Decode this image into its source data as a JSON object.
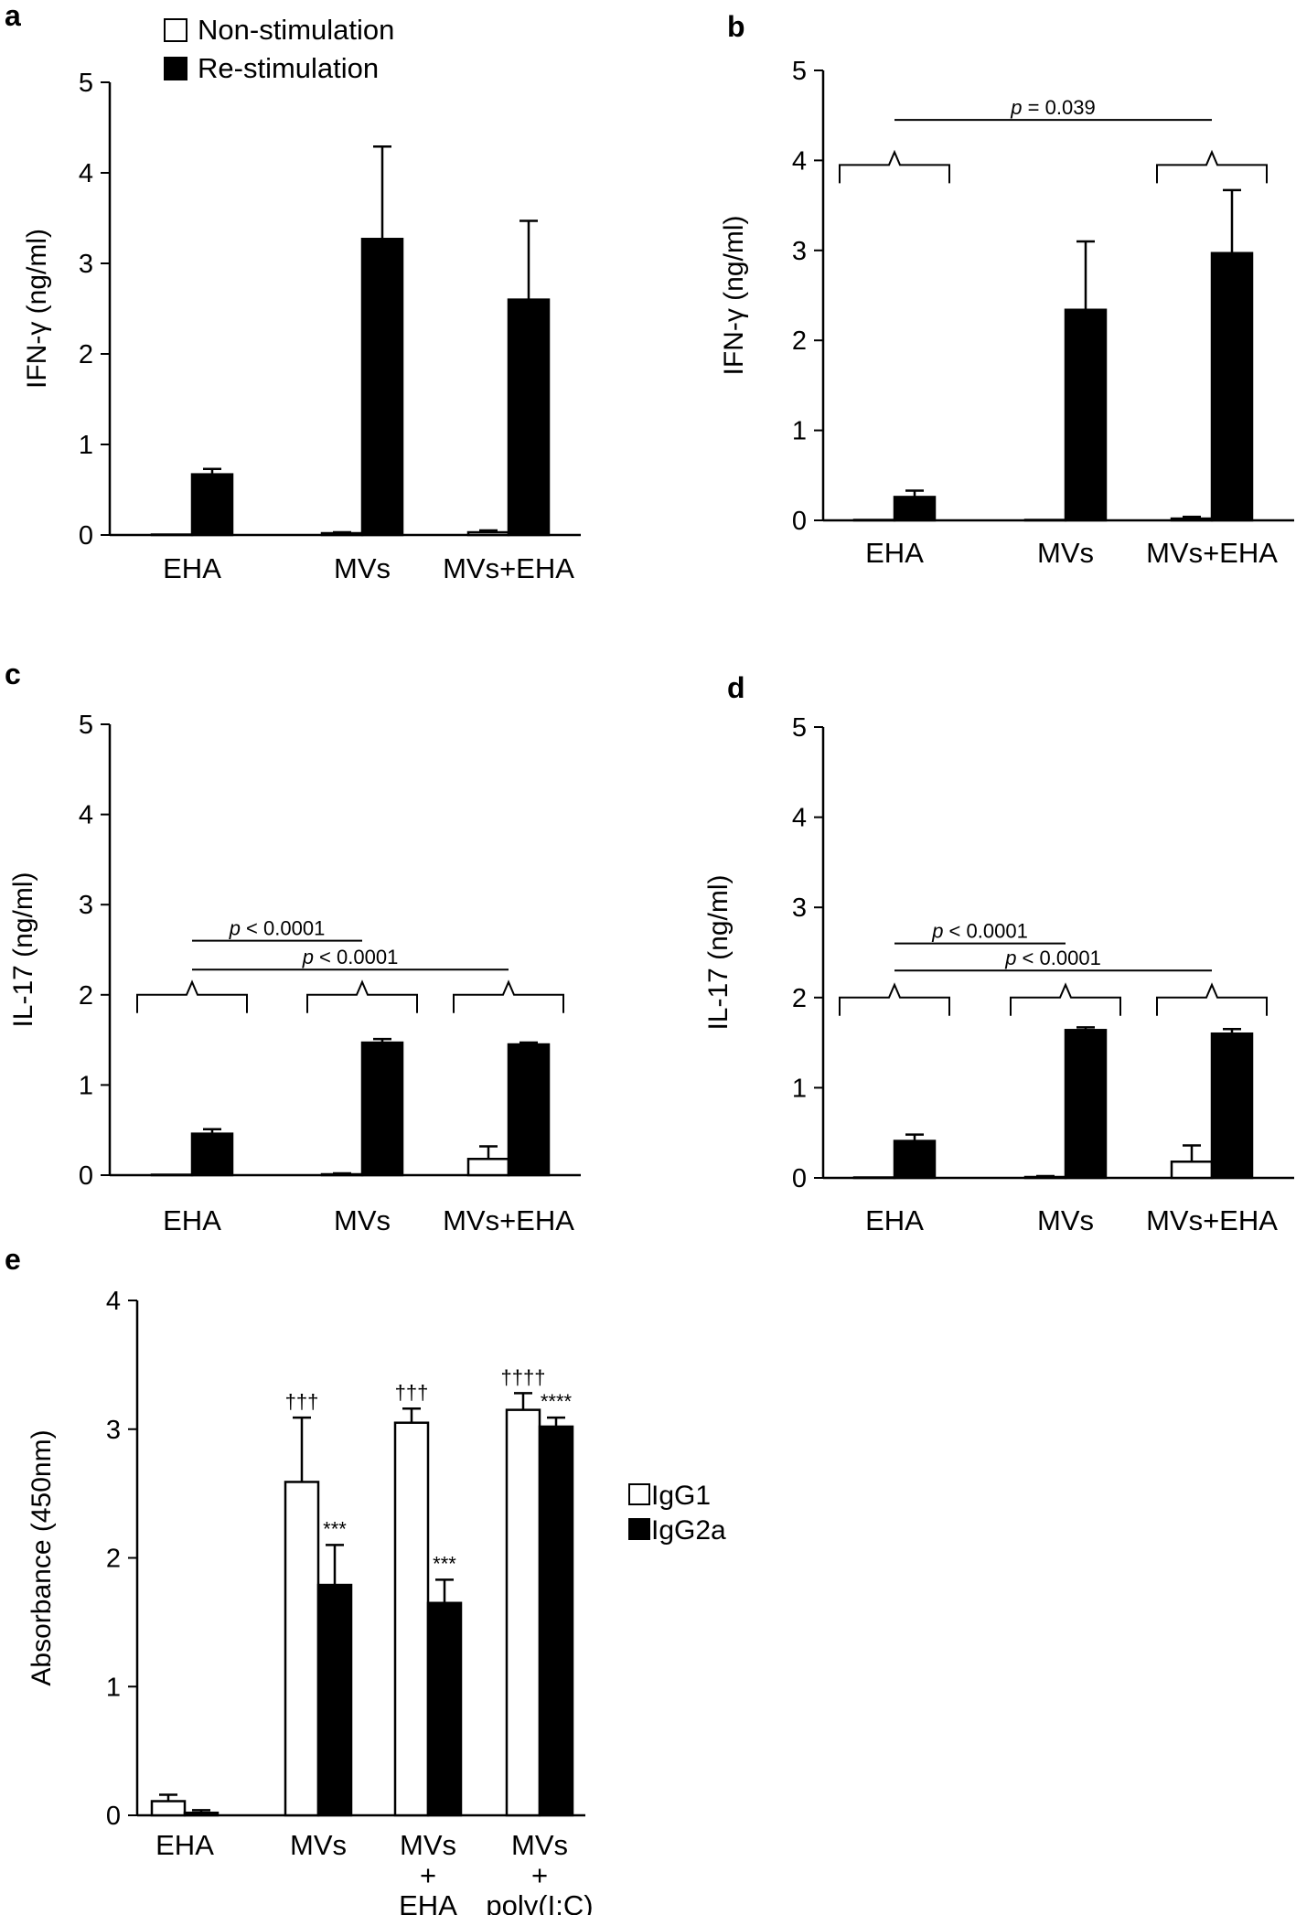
{
  "chart_data": [
    {
      "panel": "a",
      "type": "bar",
      "ylabel": "IFN-γ (ng/ml)",
      "ylim": [
        0,
        5
      ],
      "yticks": [
        0,
        1,
        2,
        3,
        4,
        5
      ],
      "categories": [
        "EHA",
        "MVs",
        "MVs+EHA"
      ],
      "series": [
        {
          "name": "Non-stimulation",
          "color": "#ffffff",
          "values": [
            0.0,
            0.02,
            0.03
          ],
          "errors": [
            0.0,
            0.01,
            0.02
          ]
        },
        {
          "name": "Re-stimulation",
          "color": "#000000",
          "values": [
            0.67,
            3.27,
            2.6
          ],
          "errors": [
            0.06,
            1.02,
            0.87
          ]
        }
      ],
      "legend": [
        "Non-stimulation",
        "Re-stimulation"
      ],
      "annotations": []
    },
    {
      "panel": "b",
      "type": "bar",
      "ylabel": "IFN-γ (ng/ml)",
      "ylim": [
        0,
        5
      ],
      "yticks": [
        0,
        1,
        2,
        3,
        4,
        5
      ],
      "categories": [
        "EHA",
        "MVs",
        "MVs+EHA"
      ],
      "series": [
        {
          "name": "Non-stimulation",
          "color": "#ffffff",
          "values": [
            0.0,
            0.0,
            0.02
          ],
          "errors": [
            0.0,
            0.0,
            0.02
          ]
        },
        {
          "name": "Re-stimulation",
          "color": "#000000",
          "values": [
            0.26,
            2.34,
            2.97
          ],
          "errors": [
            0.07,
            0.76,
            0.7
          ]
        }
      ],
      "annotations": [
        {
          "p": "p",
          "rest": " = 0.039",
          "between": [
            0,
            2
          ],
          "level": 4.45,
          "brace_level": 3.95
        }
      ]
    },
    {
      "panel": "c",
      "type": "bar",
      "ylabel": "IL-17 (ng/ml)",
      "ylim": [
        0,
        5
      ],
      "yticks": [
        0,
        1,
        2,
        3,
        4,
        5
      ],
      "categories": [
        "EHA",
        "MVs",
        "MVs+EHA"
      ],
      "series": [
        {
          "name": "Non-stimulation",
          "color": "#ffffff",
          "values": [
            0.0,
            0.01,
            0.18
          ],
          "errors": [
            0.0,
            0.01,
            0.14
          ]
        },
        {
          "name": "Re-stimulation",
          "color": "#000000",
          "values": [
            0.46,
            1.47,
            1.45
          ],
          "errors": [
            0.05,
            0.04,
            0.02
          ]
        }
      ],
      "annotations": [
        {
          "p": "p",
          "rest": " < 0.0001",
          "between": [
            0,
            1
          ],
          "level": 2.6,
          "brace_level": 2.0
        },
        {
          "p": "p",
          "rest": " < 0.0001",
          "between": [
            0,
            2
          ],
          "level": 2.28,
          "brace_level": 2.0
        }
      ]
    },
    {
      "panel": "d",
      "type": "bar",
      "ylabel": "IL-17 (ng/ml)",
      "ylim": [
        0,
        5
      ],
      "yticks": [
        0,
        1,
        2,
        3,
        4,
        5
      ],
      "categories": [
        "EHA",
        "MVs",
        "MVs+EHA"
      ],
      "series": [
        {
          "name": "Non-stimulation",
          "color": "#ffffff",
          "values": [
            0.0,
            0.01,
            0.18
          ],
          "errors": [
            0.0,
            0.01,
            0.18
          ]
        },
        {
          "name": "Re-stimulation",
          "color": "#000000",
          "values": [
            0.41,
            1.64,
            1.6
          ],
          "errors": [
            0.07,
            0.03,
            0.05
          ]
        }
      ],
      "annotations": [
        {
          "p": "p",
          "rest": " < 0.0001",
          "between": [
            0,
            1
          ],
          "level": 2.6,
          "brace_level": 2.0
        },
        {
          "p": "p",
          "rest": " < 0.0001",
          "between": [
            0,
            2
          ],
          "level": 2.3,
          "brace_level": 2.0
        }
      ]
    },
    {
      "panel": "e",
      "type": "bar",
      "ylabel": "Absorbance (450nm)",
      "ylim": [
        0,
        4
      ],
      "yticks": [
        0,
        1,
        2,
        3,
        4
      ],
      "categories": [
        [
          "EHA"
        ],
        [
          "MVs"
        ],
        [
          "MVs",
          "+",
          "EHA"
        ],
        [
          "MVs",
          "+",
          "poly(I:C)"
        ]
      ],
      "series": [
        {
          "name": "IgG1",
          "color": "#ffffff",
          "values": [
            0.11,
            2.59,
            3.05,
            3.15
          ],
          "errors": [
            0.05,
            0.5,
            0.11,
            0.13
          ],
          "marks": [
            "",
            "†††",
            "†††",
            "††††"
          ]
        },
        {
          "name": "IgG2a",
          "color": "#000000",
          "values": [
            0.02,
            1.79,
            1.65,
            3.02
          ],
          "errors": [
            0.02,
            0.31,
            0.18,
            0.07
          ],
          "marks": [
            "",
            "***",
            "***",
            "****"
          ]
        }
      ],
      "legend": [
        "IgG1",
        "IgG2a"
      ]
    }
  ]
}
